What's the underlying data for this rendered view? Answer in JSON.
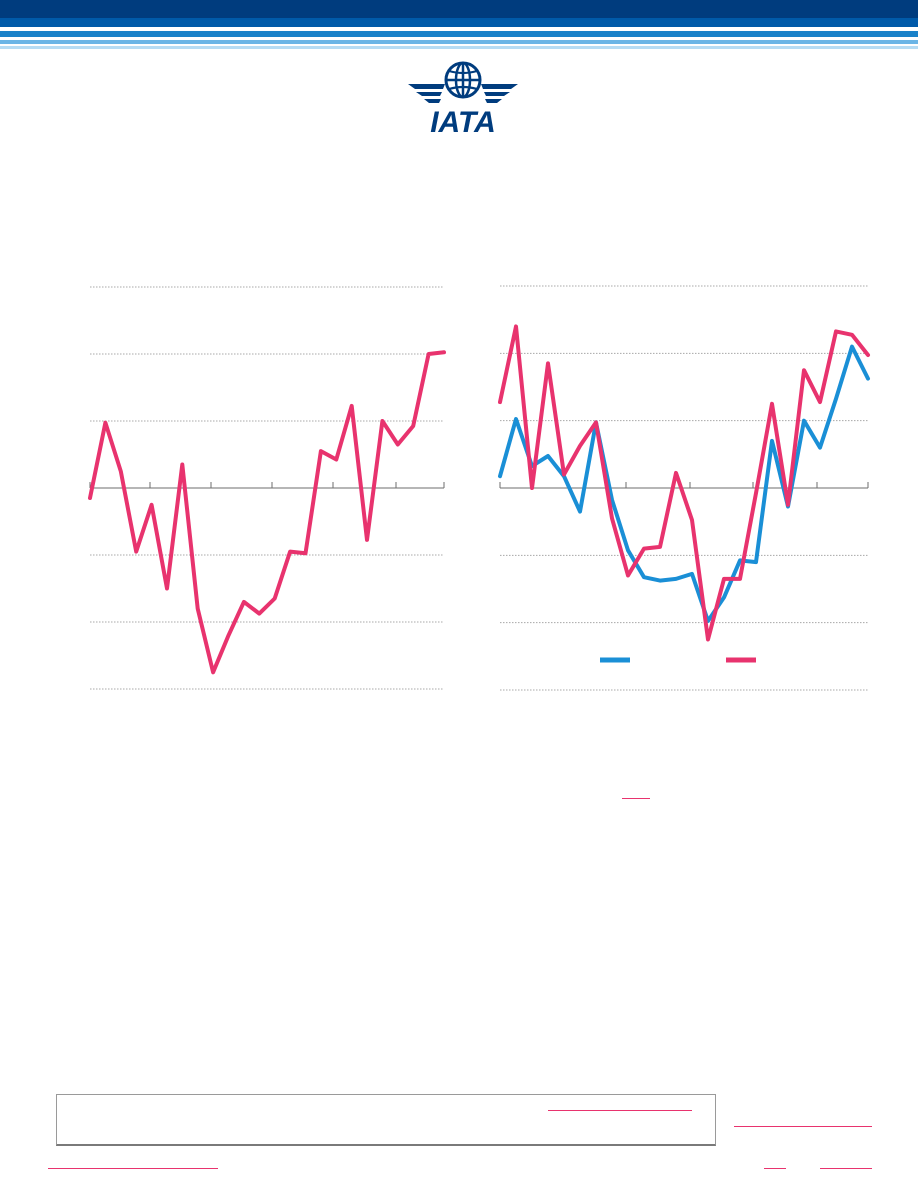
{
  "brand": {
    "logo_text": "IATA",
    "logo_icon": "globe-wings-icon",
    "primary_color": "#003c7e",
    "banner_colors": [
      "#003c7e",
      "#005aa9",
      "#1a82c9",
      "#6bb5e6",
      "#b6dcf4"
    ]
  },
  "chart_data": [
    {
      "type": "line",
      "series": [
        {
          "color": "#e8336e",
          "values": [
            -0.3,
            1.95,
            0.5,
            -1.9,
            -0.5,
            -3.0,
            0.7,
            -3.6,
            -5.5,
            -4.4,
            -3.4,
            -3.75,
            -3.3,
            -1.9,
            -1.95,
            1.1,
            0.85,
            2.45,
            -1.55,
            2.0,
            1.3,
            1.85,
            4.0,
            4.05
          ]
        }
      ],
      "ylim": [
        -6,
        6
      ],
      "grid": true
    },
    {
      "type": "line",
      "series": [
        {
          "color": "#1a8fd6",
          "values": [
            0.35,
            2.05,
            0.65,
            0.95,
            0.35,
            -0.7,
            1.95,
            -0.35,
            -1.85,
            -2.65,
            -2.75,
            -2.7,
            -2.55,
            -3.95,
            -3.25,
            -2.15,
            -2.2,
            1.4,
            -0.55,
            2.0,
            1.2,
            2.65,
            4.2,
            3.25
          ]
        },
        {
          "color": "#e8336e",
          "values": [
            2.55,
            4.8,
            0.0,
            3.7,
            0.4,
            1.25,
            1.95,
            -0.9,
            -2.6,
            -1.8,
            -1.75,
            0.45,
            -0.95,
            -4.5,
            -2.7,
            -2.7,
            -0.15,
            2.5,
            -0.5,
            3.5,
            2.55,
            4.65,
            4.55,
            3.95
          ]
        }
      ],
      "ylim": [
        -6,
        6
      ],
      "grid": true
    }
  ]
}
